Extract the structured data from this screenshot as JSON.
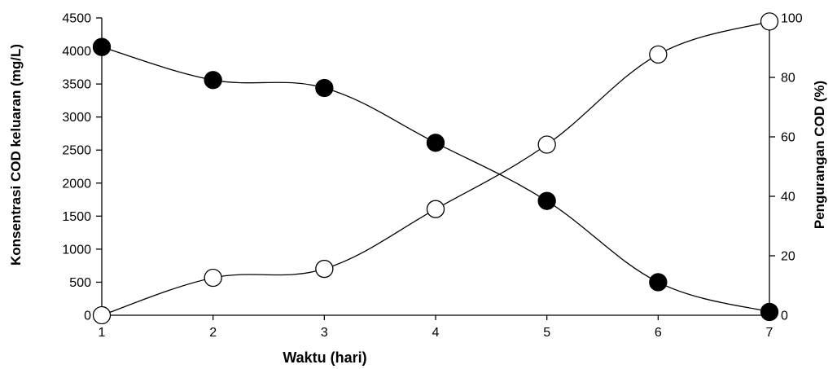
{
  "chart_data": {
    "type": "line",
    "xlabel": "Waktu (hari)",
    "ylabel_left": "Konsentrasi COD keluaran (mg/L)",
    "ylabel_right": "Pengurangan COD (%)",
    "x": [
      1,
      2,
      3,
      4,
      5,
      6,
      7
    ],
    "xlim": [
      1,
      7
    ],
    "ylim_left": [
      0,
      4500
    ],
    "ylim_right": [
      0,
      100
    ],
    "x_ticks": [
      "1",
      "2",
      "3",
      "4",
      "5",
      "6",
      "7"
    ],
    "left_ticks": [
      "0",
      "500",
      "1000",
      "1500",
      "2000",
      "2500",
      "3000",
      "3500",
      "4000",
      "4500"
    ],
    "right_ticks": [
      "0",
      "20",
      "40",
      "60",
      "80",
      "100"
    ],
    "grid": false,
    "legend": "none",
    "series": [
      {
        "axis": "left",
        "marker": "filled-circle",
        "color": "#000000",
        "values": [
          4060,
          3560,
          3440,
          2610,
          1730,
          500,
          50
        ]
      },
      {
        "axis": "right",
        "marker": "open-circle",
        "color": "#000000",
        "values": [
          0,
          12.6,
          15.6,
          35.7,
          57.4,
          87.7,
          98.8
        ]
      }
    ]
  }
}
